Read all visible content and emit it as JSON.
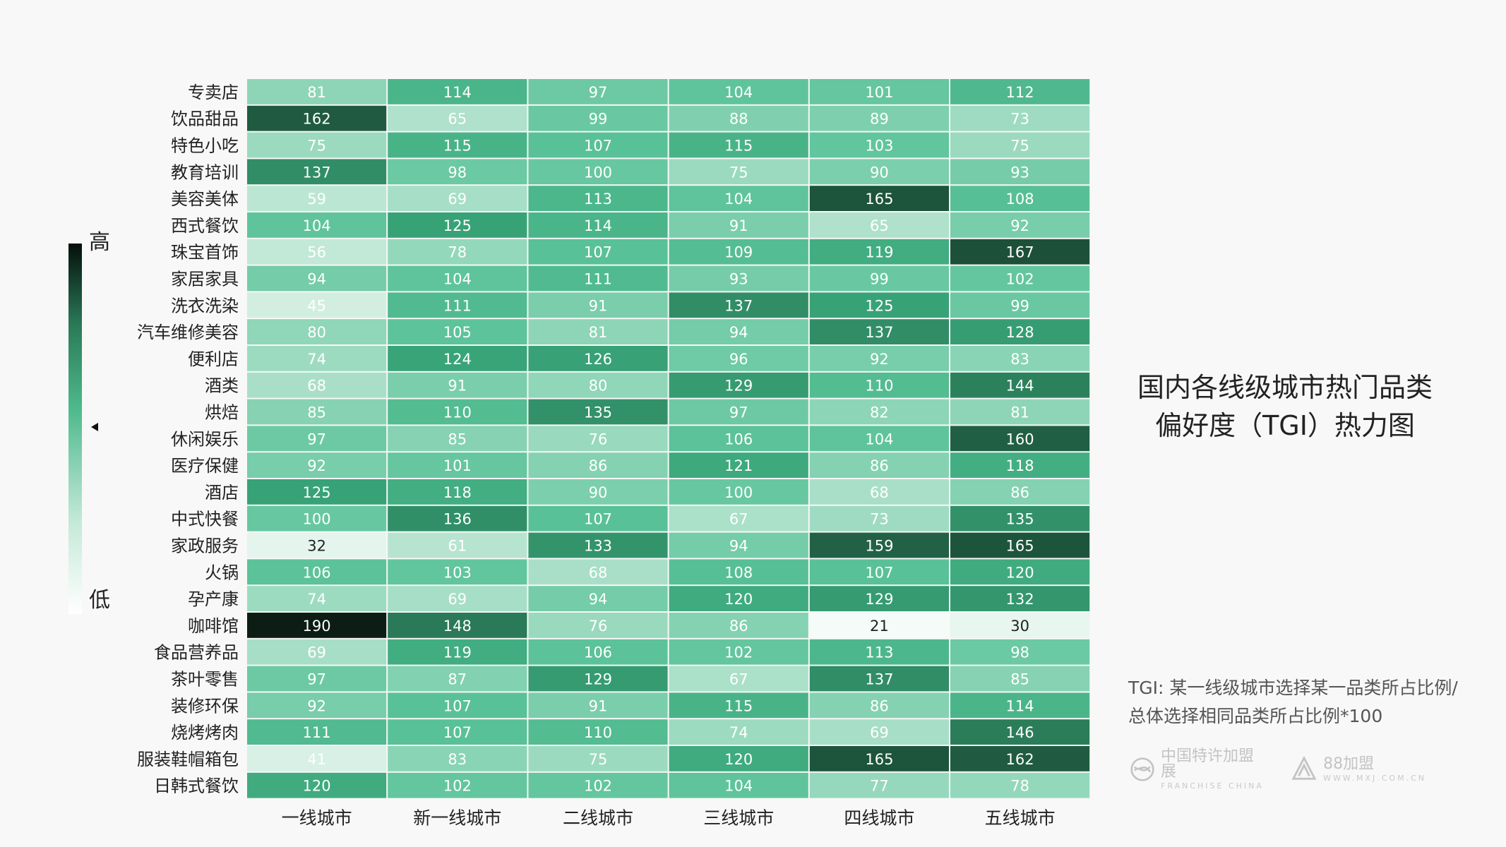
{
  "chart_data": {
    "type": "heatmap",
    "title": "国内各线级城市热门品类偏好度（TGI）热力图",
    "title_lines": [
      "国内各线级城市热门品类",
      "偏好度（TGI）热力图"
    ],
    "columns": [
      "一线城市",
      "新一线城市",
      "二线城市",
      "三线城市",
      "四线城市",
      "五线城市"
    ],
    "rows": [
      "专卖店",
      "饮品甜品",
      "特色小吃",
      "教育培训",
      "美容美体",
      "西式餐饮",
      "珠宝首饰",
      "家居家具",
      "洗衣洗染",
      "汽车维修美容",
      "便利店",
      "酒类",
      "烘焙",
      "休闲娱乐",
      "医疗保健",
      "酒店",
      "中式快餐",
      "家政服务",
      "火锅",
      "孕产康",
      "咖啡馆",
      "食品营养品",
      "茶叶零售",
      "装修环保",
      "烧烤烤肉",
      "服装鞋帽箱包",
      "日韩式餐饮"
    ],
    "values": [
      [
        81,
        114,
        97,
        104,
        101,
        112
      ],
      [
        162,
        65,
        99,
        88,
        89,
        73
      ],
      [
        75,
        115,
        107,
        115,
        103,
        75
      ],
      [
        137,
        98,
        100,
        75,
        90,
        93
      ],
      [
        59,
        69,
        113,
        104,
        165,
        108
      ],
      [
        104,
        125,
        114,
        91,
        65,
        92
      ],
      [
        56,
        78,
        107,
        109,
        119,
        167
      ],
      [
        94,
        104,
        111,
        93,
        99,
        102
      ],
      [
        45,
        111,
        91,
        137,
        125,
        99
      ],
      [
        80,
        105,
        81,
        94,
        137,
        128
      ],
      [
        74,
        124,
        126,
        96,
        92,
        83
      ],
      [
        68,
        91,
        80,
        129,
        110,
        144
      ],
      [
        85,
        110,
        135,
        97,
        82,
        81
      ],
      [
        97,
        85,
        76,
        106,
        104,
        160
      ],
      [
        92,
        101,
        86,
        121,
        86,
        118
      ],
      [
        125,
        118,
        90,
        100,
        68,
        86
      ],
      [
        100,
        136,
        107,
        67,
        73,
        135
      ],
      [
        32,
        61,
        133,
        94,
        159,
        165
      ],
      [
        106,
        103,
        68,
        108,
        107,
        120
      ],
      [
        74,
        69,
        94,
        120,
        129,
        132
      ],
      [
        190,
        148,
        76,
        86,
        21,
        30
      ],
      [
        69,
        119,
        106,
        102,
        113,
        98
      ],
      [
        97,
        87,
        129,
        67,
        137,
        85
      ],
      [
        92,
        107,
        91,
        115,
        86,
        114
      ],
      [
        111,
        107,
        110,
        74,
        69,
        146
      ],
      [
        41,
        83,
        75,
        120,
        165,
        162
      ],
      [
        120,
        102,
        102,
        104,
        77,
        78
      ]
    ],
    "color_scale": {
      "min": 21,
      "max": 190,
      "stops": [
        {
          "at": 0.0,
          "color": "#f4fbf8"
        },
        {
          "at": 0.2,
          "color": "#c4e9d8"
        },
        {
          "at": 0.5,
          "color": "#5cc39a"
        },
        {
          "at": 0.6,
          "color": "#3aa77a"
        },
        {
          "at": 0.75,
          "color": "#2a7a58"
        },
        {
          "at": 1.0,
          "color": "#0b1d14"
        }
      ]
    },
    "legend": {
      "high_label": "高",
      "low_label": "低",
      "placement": "left"
    }
  },
  "note_lines": [
    "TGI: 某一线级城市选择某一品类所占比例/",
    "总体选择相同品类所占比例*100"
  ],
  "logos": [
    {
      "icon": "franchise-china-logo-icon",
      "cn": "中国特许加盟展",
      "en": "FRANCHISE CHINA"
    },
    {
      "icon": "mxj-logo-icon",
      "cn": "88加盟",
      "en": "WWW.MXJ.COM.CN"
    }
  ]
}
